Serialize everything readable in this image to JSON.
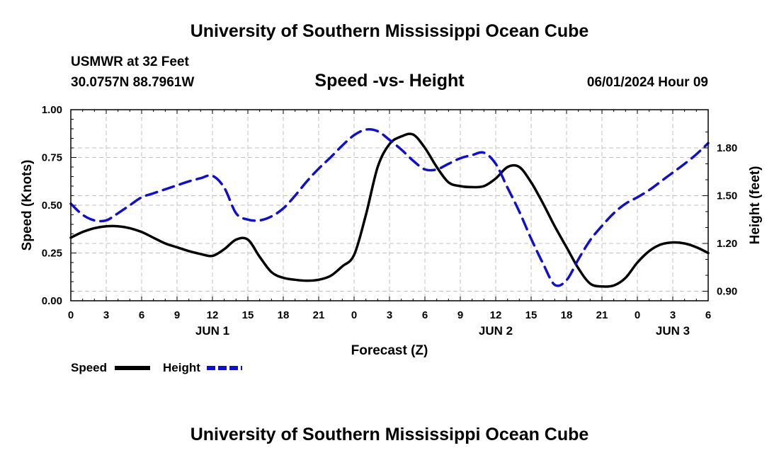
{
  "header": {
    "title": "University of Southern Mississippi Ocean Cube",
    "station": "USMWR at 32 Feet",
    "coords": "30.0757N  88.7961W",
    "subtitle": "Speed -vs- Height",
    "date": "06/01/2024 Hour 09"
  },
  "footer": {
    "title": "University of Southern Mississippi Ocean Cube"
  },
  "colors": {
    "speed": "#000000",
    "height": "#1010c8",
    "grid": "#c0c0c0"
  },
  "chart_data": {
    "type": "line",
    "title": "Speed -vs- Height",
    "xlabel": "Forecast (Z)",
    "ylabel_left": "Speed (Knots)",
    "ylabel_right": "Height (feet)",
    "x_range_hours": [
      0,
      54
    ],
    "x_tick_hours": [
      0,
      3,
      6,
      9,
      12,
      15,
      18,
      21,
      24,
      27,
      30,
      33,
      36,
      39,
      42,
      45,
      48,
      51,
      54
    ],
    "x_tick_labels": [
      "0",
      "3",
      "6",
      "9",
      "12",
      "15",
      "18",
      "21",
      "0",
      "3",
      "6",
      "9",
      "12",
      "15",
      "18",
      "21",
      "0",
      "3",
      "6"
    ],
    "date_labels": [
      {
        "hour": 12,
        "label": "JUN 1"
      },
      {
        "hour": 36,
        "label": "JUN 2"
      },
      {
        "hour": 51,
        "label": "JUN 3"
      }
    ],
    "y_left": {
      "min": 0,
      "max": 1.0,
      "ticks": [
        0,
        0.25,
        0.5,
        0.75,
        1.0
      ],
      "tick_labels": [
        "0.00",
        "0.25",
        "0.50",
        "0.75",
        "1.00"
      ]
    },
    "y_right": {
      "min": 0.84,
      "max": 2.04,
      "ticks": [
        0.9,
        1.2,
        1.5,
        1.8
      ],
      "tick_labels": [
        "0.90",
        "1.20",
        "1.50",
        "1.80"
      ]
    },
    "series": [
      {
        "name": "Speed",
        "axis": "left",
        "style": "solid",
        "x": [
          0,
          1,
          2,
          3,
          4,
          5,
          6,
          7,
          8,
          9,
          10,
          11,
          12,
          13,
          14,
          15,
          16,
          17,
          18,
          19,
          20,
          21,
          22,
          23,
          24,
          25,
          26,
          27,
          28,
          29,
          30,
          31,
          32,
          33,
          34,
          35,
          36,
          37,
          38,
          39,
          40,
          41,
          42,
          43,
          44,
          45,
          46,
          47,
          48,
          49,
          50,
          51,
          52,
          53,
          54
        ],
        "values": [
          0.33,
          0.36,
          0.38,
          0.39,
          0.39,
          0.38,
          0.36,
          0.33,
          0.3,
          0.28,
          0.26,
          0.245,
          0.235,
          0.27,
          0.32,
          0.32,
          0.23,
          0.15,
          0.12,
          0.11,
          0.105,
          0.11,
          0.13,
          0.18,
          0.24,
          0.45,
          0.7,
          0.82,
          0.86,
          0.87,
          0.8,
          0.7,
          0.62,
          0.6,
          0.595,
          0.6,
          0.64,
          0.7,
          0.7,
          0.62,
          0.51,
          0.39,
          0.28,
          0.17,
          0.09,
          0.075,
          0.08,
          0.12,
          0.2,
          0.26,
          0.295,
          0.305,
          0.3,
          0.28,
          0.25
        ]
      },
      {
        "name": "Height",
        "axis": "right",
        "style": "dashed",
        "x": [
          0,
          1,
          2,
          3,
          4,
          5,
          6,
          7,
          8,
          9,
          10,
          11,
          12,
          13,
          14,
          15,
          16,
          17,
          18,
          19,
          20,
          21,
          22,
          23,
          24,
          25,
          26,
          27,
          28,
          29,
          30,
          31,
          32,
          33,
          34,
          35,
          36,
          37,
          38,
          39,
          40,
          41,
          42,
          43,
          44,
          45,
          46,
          47,
          48,
          49,
          50,
          51,
          52,
          53,
          54
        ],
        "values": [
          1.45,
          1.38,
          1.345,
          1.345,
          1.39,
          1.44,
          1.49,
          1.515,
          1.54,
          1.565,
          1.59,
          1.61,
          1.625,
          1.55,
          1.39,
          1.35,
          1.345,
          1.37,
          1.42,
          1.5,
          1.59,
          1.67,
          1.74,
          1.815,
          1.88,
          1.915,
          1.905,
          1.85,
          1.79,
          1.72,
          1.665,
          1.665,
          1.7,
          1.735,
          1.755,
          1.77,
          1.7,
          1.55,
          1.4,
          1.23,
          1.075,
          0.94,
          0.97,
          1.1,
          1.22,
          1.31,
          1.39,
          1.45,
          1.49,
          1.535,
          1.59,
          1.645,
          1.7,
          1.76,
          1.83
        ]
      }
    ],
    "legend": [
      {
        "name": "Speed",
        "style": "solid"
      },
      {
        "name": "Height",
        "style": "dashed"
      }
    ],
    "grid": true
  }
}
